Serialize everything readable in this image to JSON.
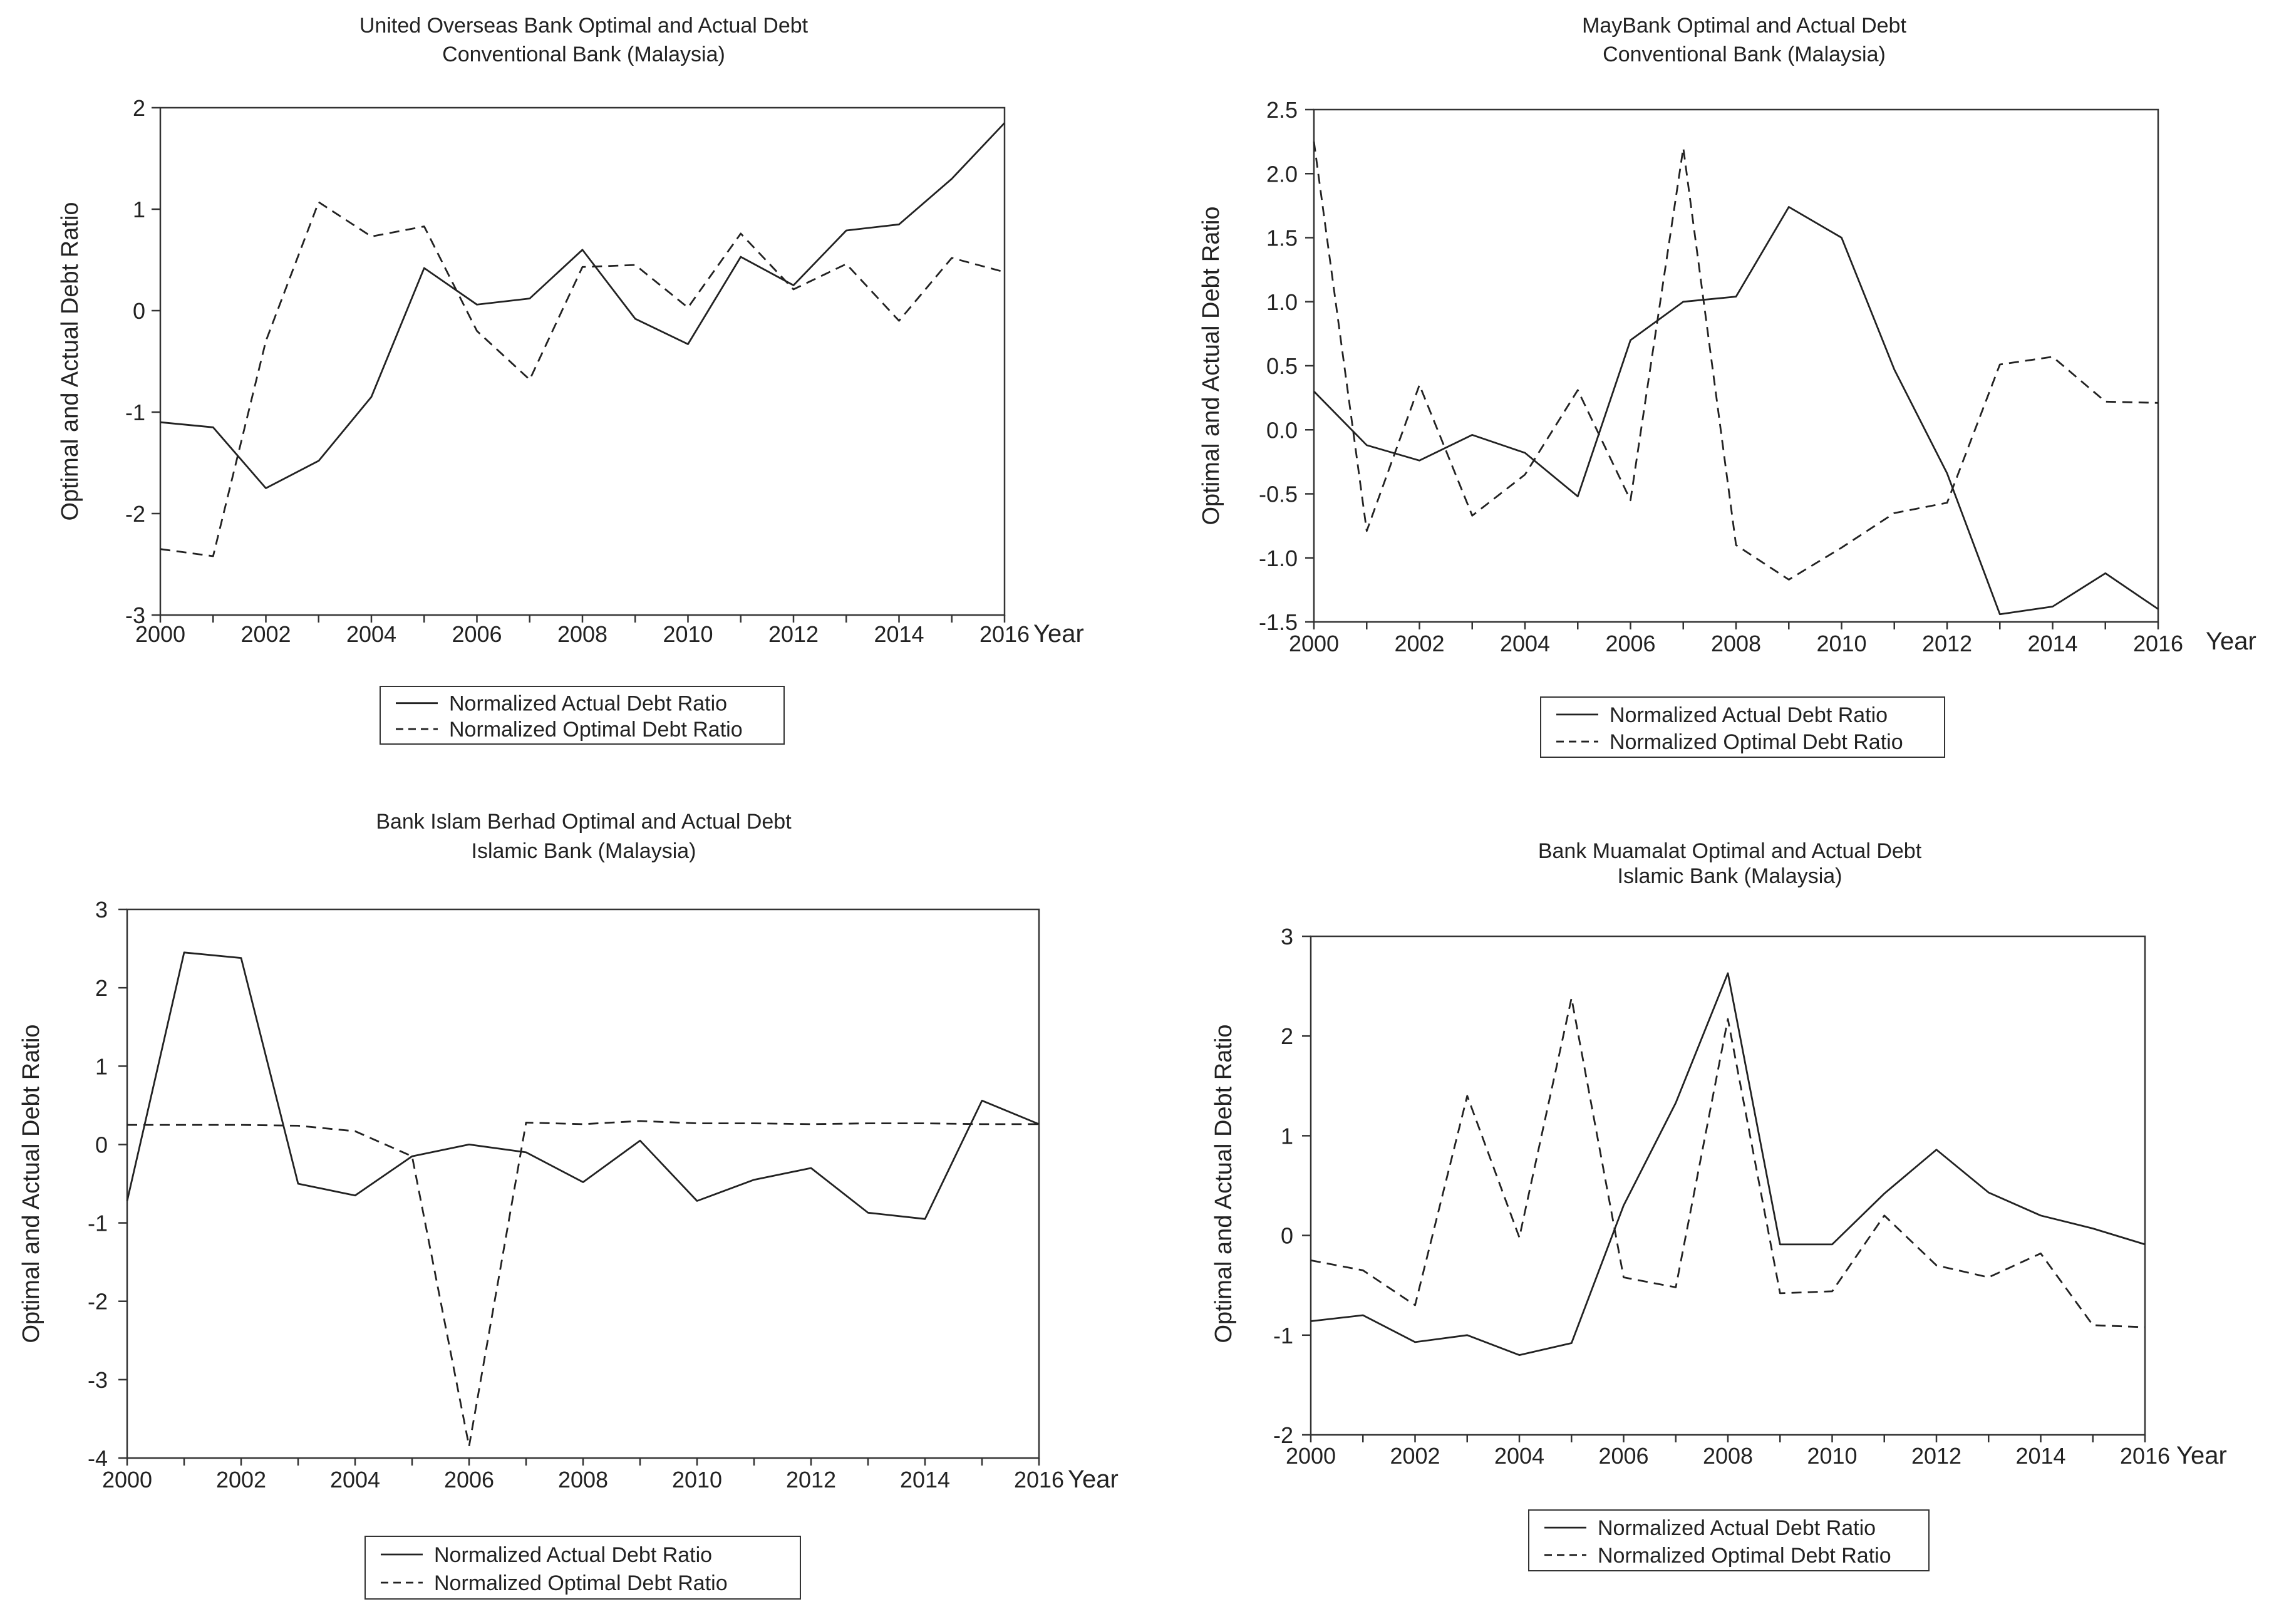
{
  "colors": {
    "line": "#222222",
    "axis": "#333333",
    "background": "#ffffff"
  },
  "chart_data": [
    {
      "type": "line",
      "title": "United Overseas Bank Optimal and Actual Debt",
      "subtitle": "Conventional Bank (Malaysia)",
      "ylabel": "Optimal and Actual Debt Ratio",
      "xlabel": "Year",
      "xlim": [
        2000,
        2016
      ],
      "ylim": [
        -3,
        2
      ],
      "yticks": [
        "2",
        "1",
        "0",
        "-1",
        "-2",
        "-3"
      ],
      "xticks": [
        "2000",
        "2002",
        "2004",
        "2006",
        "2008",
        "2010",
        "2012",
        "2014",
        "2016"
      ],
      "x": [
        2000,
        2001,
        2002,
        2003,
        2004,
        2005,
        2006,
        2007,
        2008,
        2009,
        2010,
        2011,
        2012,
        2013,
        2014,
        2015,
        2016
      ],
      "legend": "bottom-center",
      "series": [
        {
          "name": "Normalized Actual Debt Ratio",
          "style": "solid",
          "values": [
            -1.1,
            -1.15,
            -1.75,
            -1.48,
            -0.85,
            0.42,
            0.06,
            0.12,
            0.6,
            -0.08,
            -0.33,
            0.53,
            0.25,
            0.79,
            0.85,
            1.3,
            1.85
          ]
        },
        {
          "name": "Normalized Optimal Debt Ratio",
          "style": "dashed",
          "values": [
            -2.35,
            -2.42,
            -0.3,
            1.07,
            0.73,
            0.83,
            -0.2,
            -0.68,
            0.43,
            0.45,
            0.03,
            0.76,
            0.21,
            0.46,
            -0.1,
            0.52,
            0.38
          ]
        }
      ]
    },
    {
      "type": "line",
      "title": "MayBank Optimal and Actual Debt",
      "subtitle": "Conventional Bank (Malaysia)",
      "ylabel": "Optimal and Actual Debt Ratio",
      "xlabel": "Year",
      "xlim": [
        2000,
        2016
      ],
      "ylim": [
        -1.5,
        2.5
      ],
      "yticks": [
        "2.5",
        "2.0",
        "1.5",
        "1.0",
        "0.5",
        "0.0",
        "-0.5",
        "-1.0",
        "-1.5"
      ],
      "xticks": [
        "2000",
        "2002",
        "2004",
        "2006",
        "2008",
        "2010",
        "2012",
        "2014",
        "2016"
      ],
      "x": [
        2000,
        2001,
        2002,
        2003,
        2004,
        2005,
        2006,
        2007,
        2008,
        2009,
        2010,
        2011,
        2012,
        2013,
        2014,
        2015,
        2016
      ],
      "legend": "bottom-center",
      "series": [
        {
          "name": "Normalized Actual Debt Ratio",
          "style": "solid",
          "values": [
            0.3,
            -0.12,
            -0.24,
            -0.04,
            -0.18,
            -0.52,
            0.7,
            1.0,
            1.04,
            1.74,
            1.5,
            0.47,
            -0.34,
            -1.44,
            -1.38,
            -1.12,
            -1.4
          ]
        },
        {
          "name": "Normalized Optimal Debt Ratio",
          "style": "dashed",
          "values": [
            2.25,
            -0.79,
            0.35,
            -0.67,
            -0.35,
            0.31,
            -0.55,
            2.2,
            -0.9,
            -1.17,
            -0.92,
            -0.65,
            -0.57,
            0.51,
            0.57,
            0.22,
            0.21
          ]
        }
      ]
    },
    {
      "type": "line",
      "title": "Bank Islam Berhad Optimal and Actual Debt",
      "subtitle": "Islamic Bank (Malaysia)",
      "ylabel": "Optimal and Actual Debt Ratio",
      "xlabel": "Year",
      "xlim": [
        2000,
        2016
      ],
      "ylim": [
        -4,
        3
      ],
      "yticks": [
        "3",
        "2",
        "1",
        "0",
        "-1",
        "-2",
        "-3",
        "-4"
      ],
      "xticks": [
        "2000",
        "2002",
        "2004",
        "2006",
        "2008",
        "2010",
        "2012",
        "2014",
        "2016"
      ],
      "x": [
        2000,
        2001,
        2002,
        2003,
        2004,
        2005,
        2006,
        2007,
        2008,
        2009,
        2010,
        2011,
        2012,
        2013,
        2014,
        2015,
        2016
      ],
      "legend": "bottom-center",
      "series": [
        {
          "name": "Normalized Actual Debt Ratio",
          "style": "solid",
          "values": [
            -0.72,
            2.45,
            2.38,
            -0.5,
            -0.65,
            -0.15,
            0.0,
            -0.1,
            -0.48,
            0.05,
            -0.72,
            -0.45,
            -0.3,
            -0.87,
            -0.95,
            0.56,
            0.26
          ]
        },
        {
          "name": "Normalized Optimal Debt Ratio",
          "style": "dashed",
          "values": [
            0.25,
            0.25,
            0.25,
            0.24,
            0.17,
            -0.15,
            -3.85,
            0.28,
            0.26,
            0.3,
            0.27,
            0.27,
            0.26,
            0.27,
            0.27,
            0.26,
            0.26
          ]
        }
      ]
    },
    {
      "type": "line",
      "title": "Bank Muamalat Optimal and Actual Debt",
      "subtitle": "Islamic Bank (Malaysia)",
      "ylabel": "Optimal and Actual Debt Ratio",
      "xlabel": "Year",
      "xlim": [
        2000,
        2016
      ],
      "ylim": [
        -2,
        3
      ],
      "yticks": [
        "3",
        "2",
        "1",
        "0",
        "-1",
        "-2"
      ],
      "xticks": [
        "2000",
        "2002",
        "2004",
        "2006",
        "2008",
        "2010",
        "2012",
        "2014",
        "2016"
      ],
      "x": [
        2000,
        2001,
        2002,
        2003,
        2004,
        2005,
        2006,
        2007,
        2008,
        2009,
        2010,
        2011,
        2012,
        2013,
        2014,
        2015,
        2016
      ],
      "legend": "bottom-center",
      "series": [
        {
          "name": "Normalized Actual Debt Ratio",
          "style": "solid",
          "values": [
            -0.86,
            -0.8,
            -1.07,
            -1.0,
            -1.2,
            -1.08,
            0.3,
            1.33,
            2.63,
            -0.09,
            -0.09,
            0.42,
            0.86,
            0.43,
            0.2,
            0.07,
            -0.09
          ]
        },
        {
          "name": "Normalized Optimal Debt Ratio",
          "style": "dashed",
          "values": [
            -0.25,
            -0.35,
            -0.7,
            1.4,
            -0.02,
            2.38,
            -0.42,
            -0.52,
            2.17,
            -0.58,
            -0.56,
            0.2,
            -0.3,
            -0.42,
            -0.18,
            -0.9,
            -0.92
          ]
        }
      ]
    }
  ]
}
